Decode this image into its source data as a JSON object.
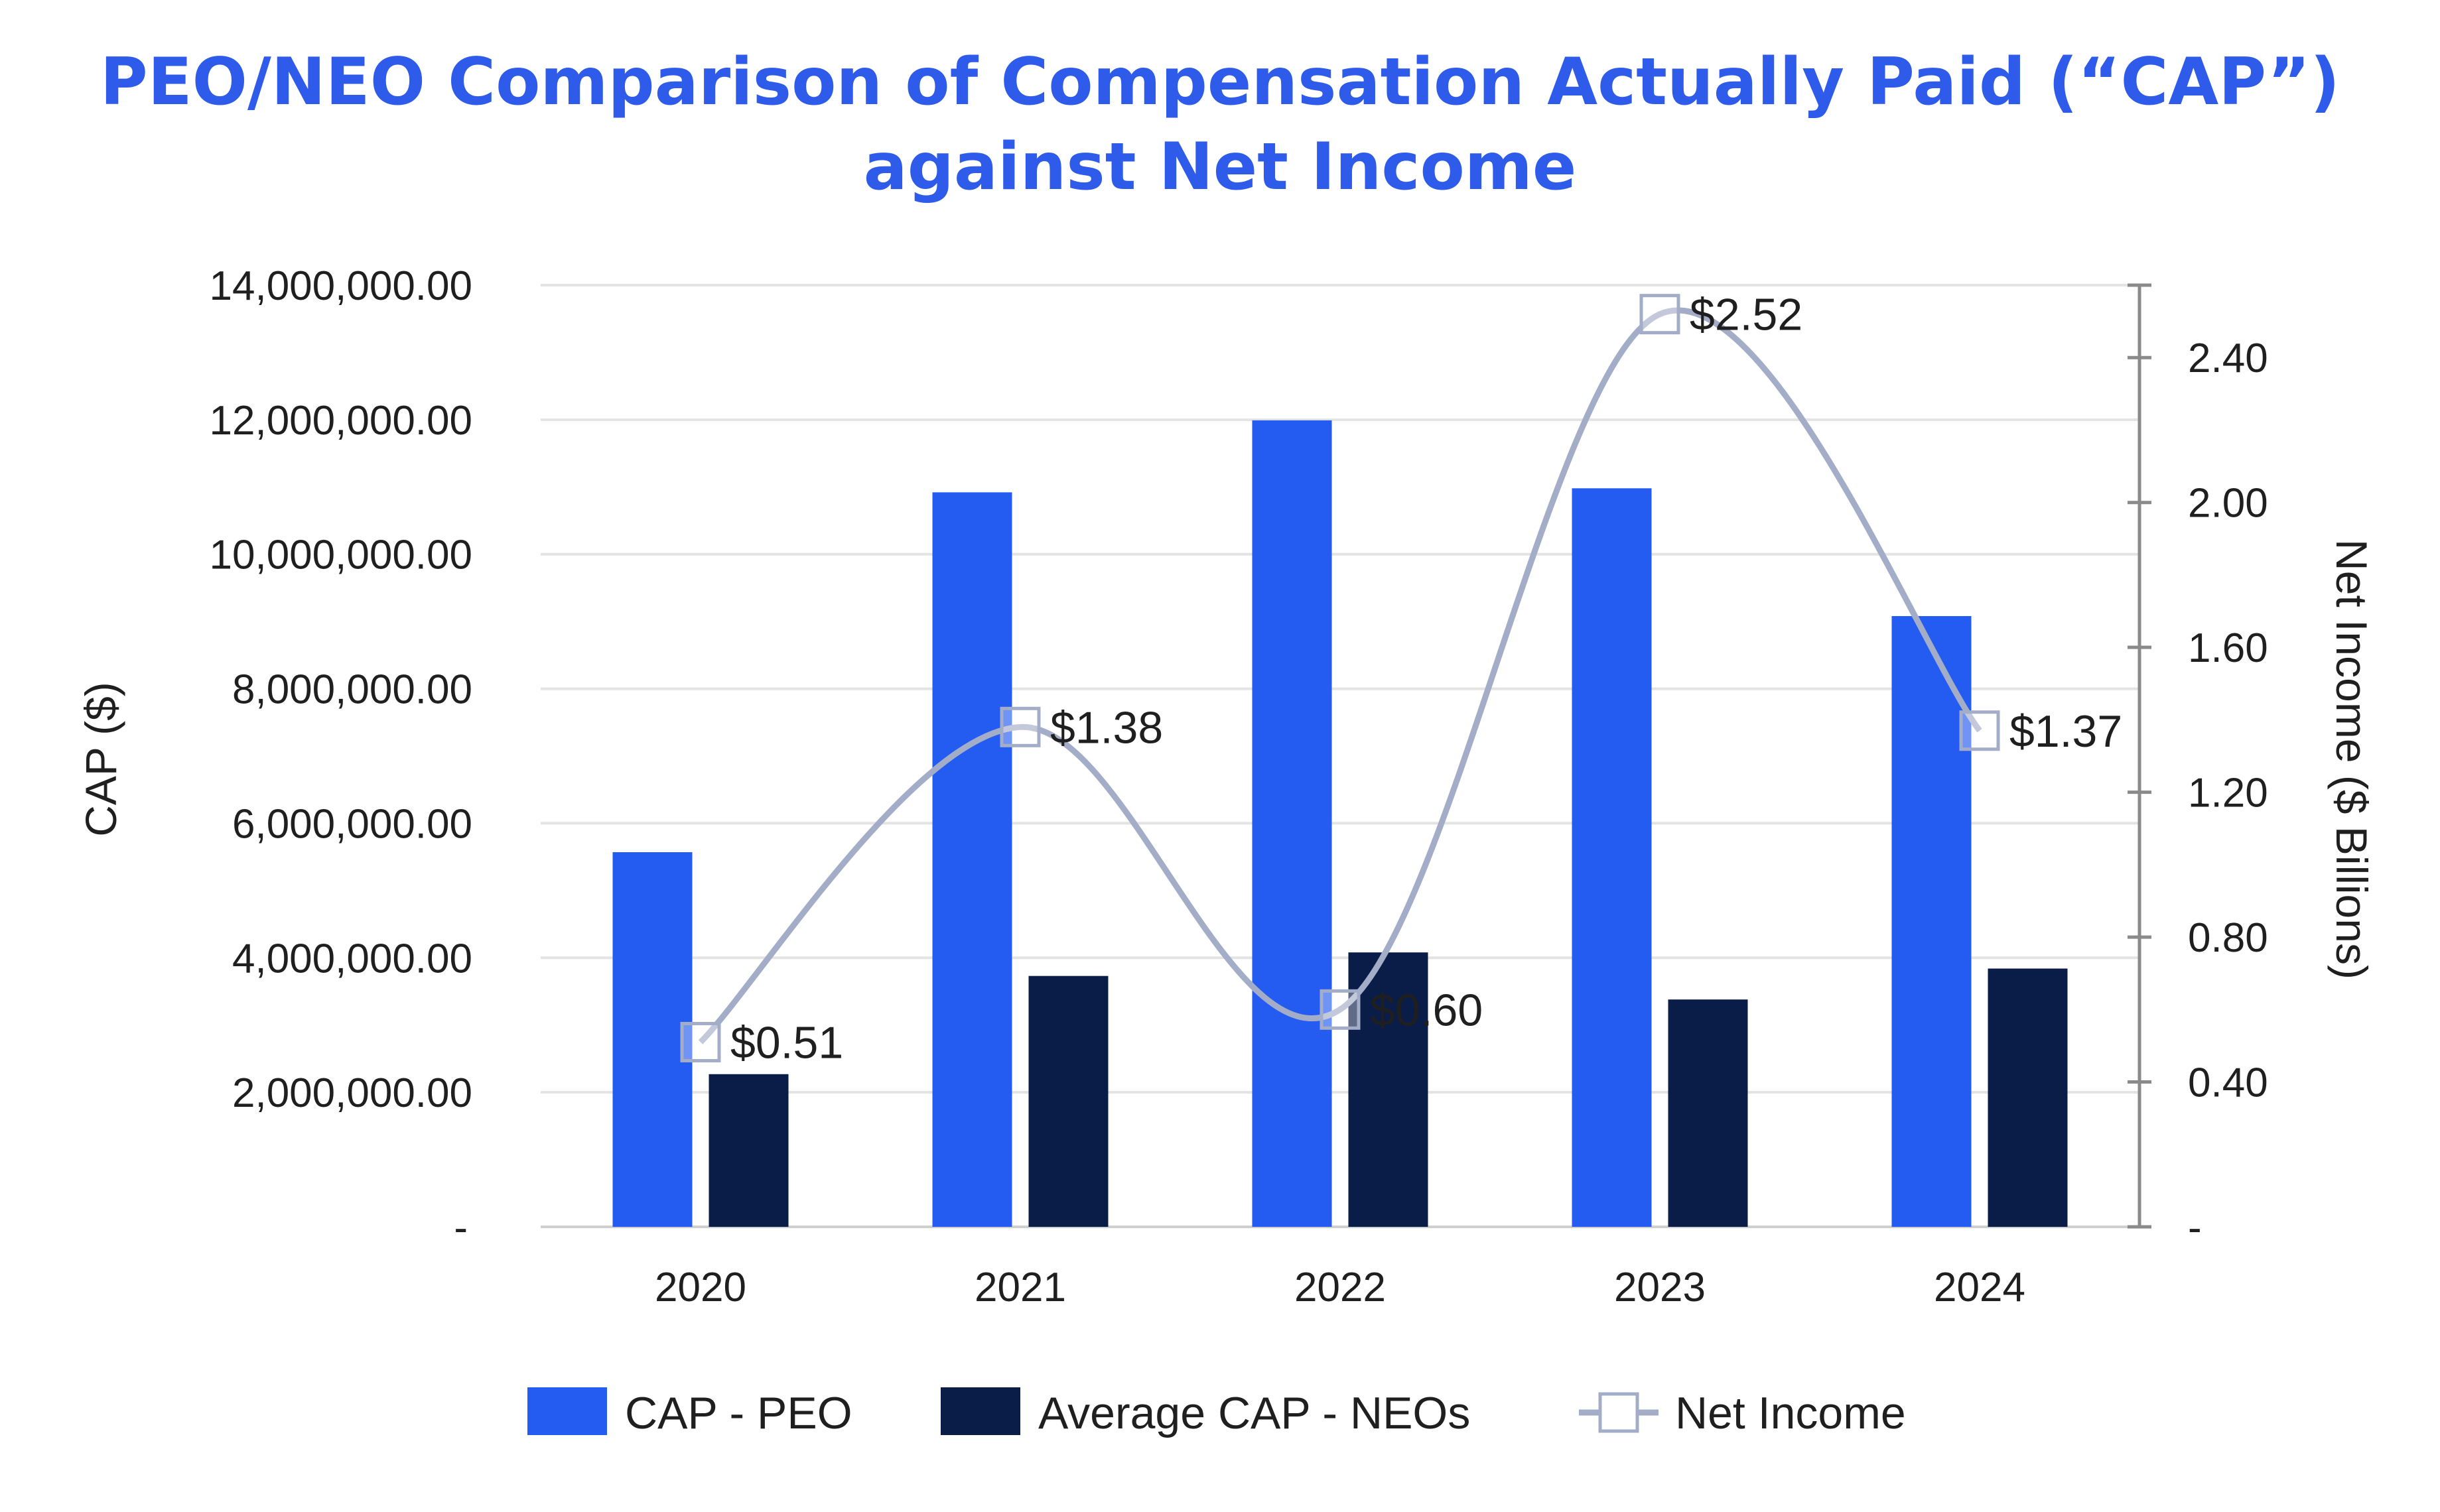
{
  "chart_data": {
    "type": "bar",
    "title_line1": "PEO/NEO Comparison of Compensation Actually Paid (“CAP”)",
    "title_line2": "against Net Income",
    "categories": [
      "2020",
      "2021",
      "2022",
      "2023",
      "2024"
    ],
    "series": [
      {
        "name": "CAP - PEO",
        "type": "bar",
        "axis": "left",
        "color": "#245bf0",
        "values": [
          5570000,
          10920000,
          11990000,
          10980000,
          9080000
        ]
      },
      {
        "name": "Average CAP - NEOs",
        "type": "bar",
        "axis": "left",
        "color": "#0a1d48",
        "values": [
          2270000,
          3730000,
          4080000,
          3380000,
          3840000
        ]
      },
      {
        "name": "Net Income",
        "type": "line",
        "axis": "right",
        "color": "#a3adc8",
        "values": [
          0.51,
          1.38,
          0.6,
          2.52,
          1.37
        ],
        "labels": [
          "$0.51",
          "$1.38",
          "$0.60",
          "$2.52",
          "$1.37"
        ]
      }
    ],
    "ylabel_left": "CAP ($)",
    "ylabel_right": "Net Income ($ Billions)",
    "ylim_left": [
      0,
      14000000
    ],
    "ylim_right": [
      0,
      2.6
    ],
    "yticks_left": [
      {
        "value": 0,
        "label": "-"
      },
      {
        "value": 2000000,
        "label": "2,000,000.00"
      },
      {
        "value": 4000000,
        "label": "4,000,000.00"
      },
      {
        "value": 6000000,
        "label": "6,000,000.00"
      },
      {
        "value": 8000000,
        "label": "8,000,000.00"
      },
      {
        "value": 10000000,
        "label": "10,000,000.00"
      },
      {
        "value": 12000000,
        "label": "12,000,000.00"
      },
      {
        "value": 14000000,
        "label": "14,000,000.00"
      }
    ],
    "yticks_right": [
      {
        "value": 0,
        "label": "-"
      },
      {
        "value": 0.4,
        "label": "0.40"
      },
      {
        "value": 0.8,
        "label": "0.80"
      },
      {
        "value": 1.2,
        "label": "1.20"
      },
      {
        "value": 1.6,
        "label": "1.60"
      },
      {
        "value": 2.0,
        "label": "2.00"
      },
      {
        "value": 2.4,
        "label": "2.40"
      }
    ],
    "grid": true,
    "legend_position": "bottom"
  }
}
